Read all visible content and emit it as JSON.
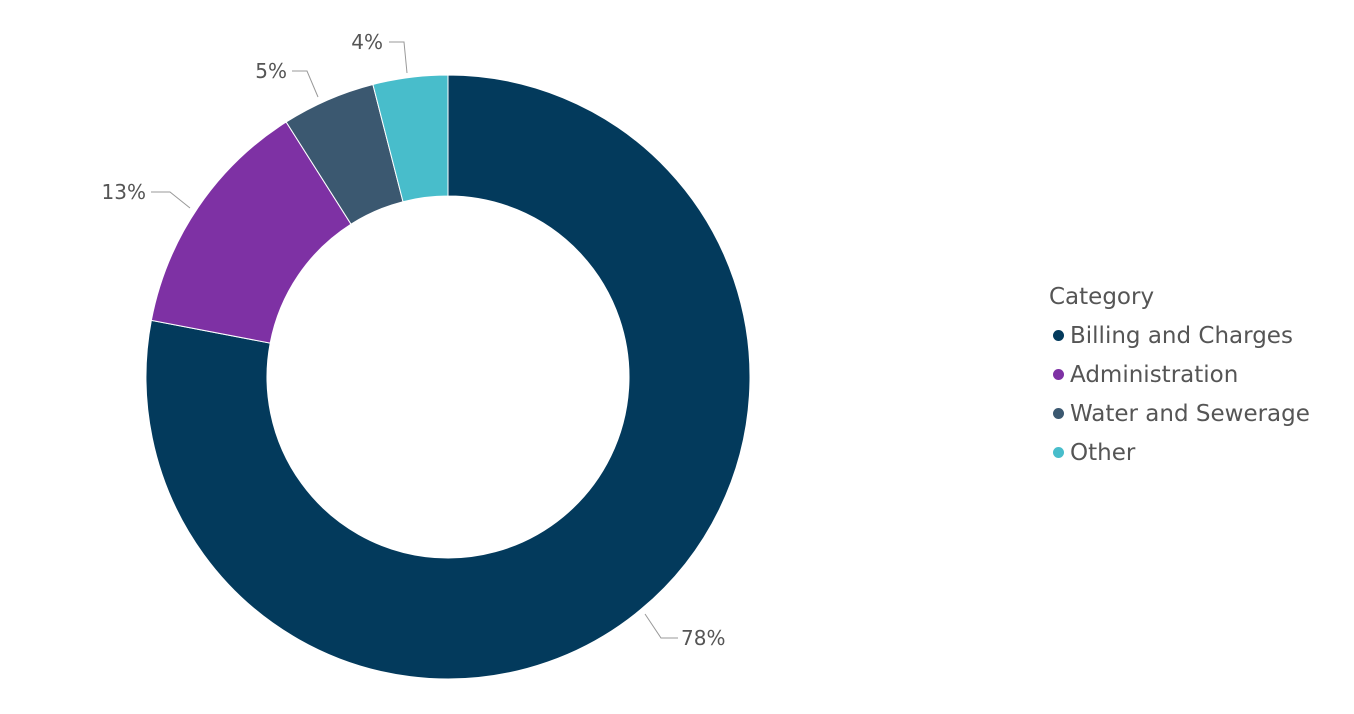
{
  "chart_data": {
    "type": "pie",
    "donut": true,
    "legend_title": "Category",
    "legend_position": "right",
    "slices": [
      {
        "label": "Billing and Charges",
        "value": 78,
        "display": "78%",
        "color": "#033a5c"
      },
      {
        "label": "Administration",
        "value": 13,
        "display": "13%",
        "color": "#7e31a4"
      },
      {
        "label": "Water and Sewerage",
        "value": 5,
        "display": "5%",
        "color": "#3b5870"
      },
      {
        "label": "Other",
        "value": 4,
        "display": "4%",
        "color": "#48bdcb"
      }
    ]
  }
}
